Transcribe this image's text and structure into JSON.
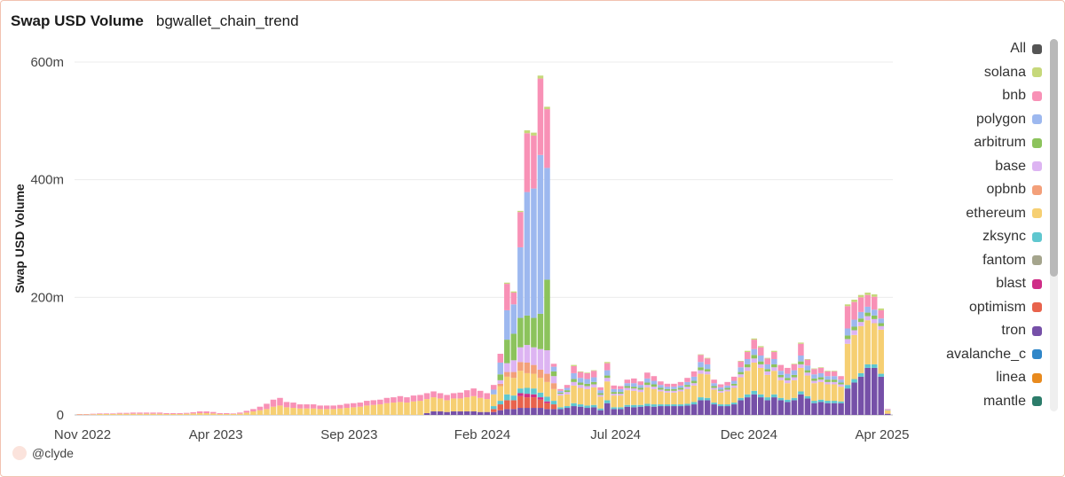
{
  "header": {
    "title": "Swap USD Volume",
    "subtitle": "bgwallet_chain_trend"
  },
  "footer": {
    "handle": "@clyde"
  },
  "colors": {
    "solana": "#c6d87a",
    "bnb": "#f891b6",
    "polygon": "#9db8ef",
    "arbitrum": "#8cc35c",
    "base": "#ddb4f2",
    "opbnb": "#f3a07a",
    "ethereum": "#f6cf72",
    "zksync": "#5fc7cf",
    "fantom": "#a5a58d",
    "blast": "#cf2d87",
    "optimism": "#e8634c",
    "tron": "#7650a8",
    "avalanche_c": "#2f86c8",
    "linea": "#e88a1e",
    "mantle": "#2c7c6a",
    "All": "#555555"
  },
  "legend": {
    "items": [
      {
        "label": "All",
        "color": "#555555"
      },
      {
        "label": "solana",
        "color": "#c6d87a"
      },
      {
        "label": "bnb",
        "color": "#f891b6"
      },
      {
        "label": "polygon",
        "color": "#9db8ef"
      },
      {
        "label": "arbitrum",
        "color": "#8cc35c"
      },
      {
        "label": "base",
        "color": "#ddb4f2"
      },
      {
        "label": "opbnb",
        "color": "#f3a07a"
      },
      {
        "label": "ethereum",
        "color": "#f6cf72"
      },
      {
        "label": "zksync",
        "color": "#5fc7cf"
      },
      {
        "label": "fantom",
        "color": "#a5a58d"
      },
      {
        "label": "blast",
        "color": "#cf2d87"
      },
      {
        "label": "optimism",
        "color": "#e8634c"
      },
      {
        "label": "tron",
        "color": "#7650a8"
      },
      {
        "label": "avalanche_c",
        "color": "#2f86c8"
      },
      {
        "label": "linea",
        "color": "#e88a1e"
      },
      {
        "label": "mantle",
        "color": "#2c7c6a"
      }
    ]
  },
  "chart_data": {
    "type": "bar",
    "stacked": true,
    "title": "Swap USD Volume",
    "subtitle": "bgwallet_chain_trend",
    "ylabel": "Swap USD Volume",
    "xlabel": "",
    "ylim": [
      0,
      600
    ],
    "yticks": [
      0,
      200,
      400,
      600
    ],
    "ytick_labels": [
      "0",
      "200m",
      "400m",
      "600m"
    ],
    "xticks": [
      "Nov 2022",
      "Apr 2023",
      "Sep 2023",
      "Feb 2024",
      "Jul 2024",
      "Dec 2024",
      "Apr 2025"
    ],
    "grid": true,
    "legend_position": "right",
    "unit": "millions USD",
    "series_order": [
      "tron",
      "optimism",
      "blast",
      "zksync",
      "ethereum",
      "opbnb",
      "base",
      "arbitrum",
      "polygon",
      "bnb",
      "solana"
    ],
    "weeks": [
      {
        "tron": 0,
        "ethereum": 1,
        "bnb": 0.5
      },
      {
        "tron": 0,
        "ethereum": 1,
        "bnb": 0.5
      },
      {
        "tron": 0,
        "ethereum": 1,
        "bnb": 1
      },
      {
        "tron": 0,
        "ethereum": 1.5,
        "bnb": 1
      },
      {
        "tron": 0,
        "ethereum": 1.5,
        "bnb": 1
      },
      {
        "tron": 0,
        "ethereum": 1.5,
        "bnb": 1
      },
      {
        "tron": 0,
        "ethereum": 2,
        "bnb": 1.5
      },
      {
        "tron": 0,
        "ethereum": 2,
        "bnb": 1.5
      },
      {
        "tron": 0,
        "ethereum": 2,
        "bnb": 2
      },
      {
        "tron": 0,
        "ethereum": 2,
        "bnb": 2
      },
      {
        "tron": 0,
        "ethereum": 2,
        "bnb": 2
      },
      {
        "tron": 0,
        "ethereum": 2,
        "bnb": 2
      },
      {
        "tron": 0,
        "ethereum": 2,
        "bnb": 2
      },
      {
        "tron": 0,
        "ethereum": 1.5,
        "bnb": 1.5
      },
      {
        "tron": 0,
        "ethereum": 1.5,
        "bnb": 1.5
      },
      {
        "tron": 0,
        "ethereum": 1.5,
        "bnb": 1.5
      },
      {
        "tron": 0,
        "ethereum": 2,
        "bnb": 1.5
      },
      {
        "tron": 0,
        "ethereum": 2.5,
        "bnb": 2
      },
      {
        "tron": 0,
        "ethereum": 3,
        "bnb": 3
      },
      {
        "tron": 0,
        "ethereum": 3,
        "bnb": 3
      },
      {
        "tron": 0,
        "ethereum": 2.5,
        "bnb": 2.5
      },
      {
        "tron": 0,
        "ethereum": 1.5,
        "bnb": 1.5
      },
      {
        "tron": 0,
        "ethereum": 1.5,
        "bnb": 1.5
      },
      {
        "tron": 0,
        "ethereum": 1.5,
        "bnb": 1
      },
      {
        "tron": 0,
        "ethereum": 2,
        "bnb": 2
      },
      {
        "tron": 0,
        "ethereum": 4,
        "bnb": 3
      },
      {
        "tron": 0,
        "ethereum": 6,
        "bnb": 4
      },
      {
        "tron": 0,
        "ethereum": 8,
        "bnb": 6
      },
      {
        "tron": 0,
        "ethereum": 10,
        "bnb": 9
      },
      {
        "tron": 0,
        "ethereum": 14,
        "bnb": 12
      },
      {
        "tron": 0,
        "ethereum": 16,
        "bnb": 13
      },
      {
        "tron": 0,
        "ethereum": 13,
        "bnb": 9
      },
      {
        "tron": 0,
        "ethereum": 12,
        "bnb": 9
      },
      {
        "tron": 0,
        "ethereum": 11,
        "bnb": 7
      },
      {
        "tron": 0,
        "ethereum": 11,
        "bnb": 7
      },
      {
        "tron": 0,
        "ethereum": 11,
        "bnb": 7
      },
      {
        "tron": 0,
        "ethereum": 10,
        "bnb": 6
      },
      {
        "tron": 0,
        "ethereum": 10,
        "bnb": 6
      },
      {
        "tron": 0,
        "ethereum": 10,
        "bnb": 6
      },
      {
        "tron": 0,
        "ethereum": 11,
        "bnb": 6
      },
      {
        "tron": 0,
        "ethereum": 12,
        "bnb": 7
      },
      {
        "tron": 0,
        "ethereum": 13,
        "bnb": 7
      },
      {
        "tron": 0,
        "ethereum": 14,
        "bnb": 7
      },
      {
        "tron": 0,
        "ethereum": 16,
        "bnb": 8
      },
      {
        "tron": 0,
        "ethereum": 17,
        "bnb": 8
      },
      {
        "tron": 0,
        "ethereum": 18,
        "bnb": 8
      },
      {
        "tron": 0,
        "ethereum": 20,
        "bnb": 9
      },
      {
        "tron": 0,
        "ethereum": 21,
        "bnb": 9
      },
      {
        "tron": 0,
        "ethereum": 22,
        "bnb": 10
      },
      {
        "tron": 0,
        "ethereum": 21,
        "bnb": 9
      },
      {
        "tron": 0,
        "ethereum": 23,
        "bnb": 10
      },
      {
        "tron": 0,
        "ethereum": 24,
        "bnb": 10
      },
      {
        "tron": 3,
        "ethereum": 24,
        "bnb": 10
      },
      {
        "tron": 6,
        "ethereum": 24,
        "bnb": 10
      },
      {
        "tron": 6,
        "ethereum": 22,
        "bnb": 9
      },
      {
        "tron": 5,
        "ethereum": 20,
        "bnb": 9
      },
      {
        "tron": 6,
        "ethereum": 22,
        "bnb": 9
      },
      {
        "tron": 6,
        "ethereum": 22,
        "bnb": 10
      },
      {
        "tron": 6,
        "ethereum": 24,
        "bnb": 12
      },
      {
        "tron": 6,
        "ethereum": 26,
        "bnb": 13
      },
      {
        "tron": 5,
        "ethereum": 24,
        "bnb": 12
      },
      {
        "tron": 5,
        "ethereum": 22,
        "bnb": 10
      },
      {
        "tron": 5,
        "optimism": 5,
        "ethereum": 20,
        "zksync": 5,
        "polygon": 8,
        "bnb": 8
      },
      {
        "tron": 8,
        "optimism": 10,
        "ethereum": 25,
        "zksync": 6,
        "opbnb": 4,
        "base": 6,
        "arbitrum": 10,
        "polygon": 20,
        "bnb": 15
      },
      {
        "tron": 10,
        "optimism": 15,
        "ethereum": 30,
        "zksync": 10,
        "opbnb": 8,
        "base": 15,
        "arbitrum": 40,
        "polygon": 50,
        "bnb": 45,
        "solana": 2
      },
      {
        "tron": 10,
        "optimism": 15,
        "ethereum": 30,
        "zksync": 8,
        "opbnb": 10,
        "base": 20,
        "arbitrum": 45,
        "polygon": 50,
        "bnb": 20,
        "solana": 2
      },
      {
        "tron": 12,
        "optimism": 20,
        "blast": 5,
        "ethereum": 30,
        "zksync": 8,
        "opbnb": 15,
        "base": 25,
        "arbitrum": 50,
        "polygon": 120,
        "bnb": 60,
        "solana": 2
      },
      {
        "tron": 12,
        "optimism": 18,
        "blast": 6,
        "ethereum": 25,
        "zksync": 10,
        "opbnb": 18,
        "base": 30,
        "arbitrum": 50,
        "polygon": 210,
        "bnb": 100,
        "solana": 5
      },
      {
        "tron": 12,
        "optimism": 18,
        "blast": 5,
        "ethereum": 25,
        "zksync": 10,
        "opbnb": 15,
        "base": 30,
        "arbitrum": 50,
        "polygon": 220,
        "bnb": 90,
        "solana": 5
      },
      {
        "tron": 12,
        "optimism": 14,
        "blast": 4,
        "ethereum": 25,
        "zksync": 8,
        "opbnb": 14,
        "base": 35,
        "arbitrum": 60,
        "polygon": 270,
        "bnb": 130,
        "solana": 5
      },
      {
        "tron": 10,
        "optimism": 10,
        "blast": 3,
        "ethereum": 25,
        "zksync": 8,
        "opbnb": 14,
        "base": 40,
        "arbitrum": 120,
        "polygon": 190,
        "bnb": 100,
        "solana": 4
      },
      {
        "tron": 10,
        "optimism": 8,
        "ethereum": 20,
        "zksync": 6,
        "opbnb": 10,
        "base": 12,
        "arbitrum": 8,
        "polygon": 8,
        "bnb": 5
      },
      {
        "tron": 10,
        "ethereum": 20,
        "zksync": 3,
        "base": 3,
        "arbitrum": 2,
        "polygon": 3,
        "bnb": 3
      },
      {
        "tron": 12,
        "ethereum": 20,
        "zksync": 3,
        "base": 4,
        "arbitrum": 3,
        "polygon": 4,
        "bnb": 5
      },
      {
        "tron": 15,
        "ethereum": 30,
        "zksync": 5,
        "base": 6,
        "arbitrum": 5,
        "polygon": 10,
        "bnb": 12,
        "solana": 2
      },
      {
        "tron": 14,
        "ethereum": 28,
        "zksync": 4,
        "base": 5,
        "arbitrum": 4,
        "polygon": 8,
        "bnb": 10,
        "solana": 1
      },
      {
        "tron": 12,
        "ethereum": 28,
        "zksync": 4,
        "base": 5,
        "arbitrum": 4,
        "polygon": 8,
        "bnb": 10,
        "solana": 1
      },
      {
        "tron": 13,
        "ethereum": 30,
        "zksync": 4,
        "base": 5,
        "arbitrum": 4,
        "polygon": 8,
        "bnb": 11,
        "solana": 1
      },
      {
        "tron": 8,
        "ethereum": 20,
        "zksync": 3,
        "base": 3,
        "arbitrum": 3,
        "polygon": 5,
        "bnb": 5
      },
      {
        "tron": 20,
        "ethereum": 32,
        "zksync": 5,
        "base": 6,
        "arbitrum": 4,
        "polygon": 9,
        "bnb": 12,
        "solana": 2
      },
      {
        "tron": 10,
        "ethereum": 20,
        "zksync": 3,
        "base": 3,
        "arbitrum": 3,
        "polygon": 5,
        "bnb": 6
      },
      {
        "tron": 10,
        "ethereum": 20,
        "zksync": 3,
        "base": 3,
        "arbitrum": 3,
        "polygon": 5,
        "bnb": 5
      },
      {
        "tron": 14,
        "ethereum": 25,
        "zksync": 3,
        "base": 4,
        "arbitrum": 3,
        "polygon": 5,
        "bnb": 6
      },
      {
        "tron": 13,
        "ethereum": 24,
        "zksync": 4,
        "base": 4,
        "arbitrum": 3,
        "polygon": 6,
        "bnb": 8
      },
      {
        "tron": 14,
        "ethereum": 22,
        "zksync": 3,
        "base": 4,
        "arbitrum": 3,
        "polygon": 5,
        "bnb": 6
      },
      {
        "tron": 15,
        "ethereum": 28,
        "zksync": 4,
        "base": 4,
        "arbitrum": 4,
        "polygon": 7,
        "bnb": 10
      },
      {
        "tron": 14,
        "ethereum": 26,
        "zksync": 4,
        "base": 4,
        "arbitrum": 4,
        "polygon": 6,
        "bnb": 8
      },
      {
        "tron": 15,
        "ethereum": 22,
        "zksync": 3,
        "base": 3,
        "arbitrum": 3,
        "polygon": 5,
        "bnb": 6
      },
      {
        "tron": 15,
        "ethereum": 20,
        "zksync": 3,
        "base": 3,
        "arbitrum": 3,
        "polygon": 4,
        "bnb": 5
      },
      {
        "tron": 15,
        "ethereum": 20,
        "zksync": 3,
        "base": 3,
        "arbitrum": 3,
        "polygon": 4,
        "bnb": 5
      },
      {
        "tron": 15,
        "ethereum": 22,
        "zksync": 3,
        "base": 3,
        "arbitrum": 3,
        "polygon": 4,
        "bnb": 6
      },
      {
        "tron": 16,
        "ethereum": 25,
        "zksync": 3,
        "base": 4,
        "arbitrum": 3,
        "polygon": 5,
        "bnb": 7
      },
      {
        "tron": 18,
        "ethereum": 28,
        "zksync": 4,
        "base": 4,
        "arbitrum": 4,
        "polygon": 7,
        "bnb": 9
      },
      {
        "tron": 25,
        "ethereum": 40,
        "zksync": 5,
        "base": 6,
        "arbitrum": 5,
        "polygon": 9,
        "bnb": 12,
        "solana": 1
      },
      {
        "tron": 25,
        "ethereum": 40,
        "zksync": 4,
        "base": 5,
        "arbitrum": 4,
        "polygon": 8,
        "bnb": 10,
        "solana": 1
      },
      {
        "tron": 18,
        "ethereum": 22,
        "zksync": 3,
        "base": 3,
        "arbitrum": 3,
        "polygon": 5,
        "bnb": 6
      },
      {
        "tron": 15,
        "ethereum": 20,
        "zksync": 3,
        "base": 3,
        "arbitrum": 2,
        "polygon": 4,
        "bnb": 5
      },
      {
        "tron": 15,
        "ethereum": 22,
        "zksync": 3,
        "base": 3,
        "arbitrum": 3,
        "polygon": 4,
        "bnb": 6
      },
      {
        "tron": 18,
        "ethereum": 25,
        "zksync": 3,
        "base": 4,
        "arbitrum": 3,
        "polygon": 5,
        "bnb": 7
      },
      {
        "tron": 25,
        "ethereum": 35,
        "zksync": 4,
        "base": 5,
        "arbitrum": 4,
        "polygon": 8,
        "bnb": 10,
        "solana": 1
      },
      {
        "tron": 30,
        "ethereum": 40,
        "zksync": 5,
        "base": 6,
        "arbitrum": 5,
        "polygon": 9,
        "bnb": 12,
        "solana": 2
      },
      {
        "tron": 35,
        "ethereum": 48,
        "zksync": 6,
        "base": 7,
        "arbitrum": 6,
        "polygon": 10,
        "bnb": 16,
        "solana": 2
      },
      {
        "tron": 30,
        "ethereum": 45,
        "zksync": 5,
        "base": 6,
        "arbitrum": 5,
        "polygon": 10,
        "bnb": 14,
        "solana": 2
      },
      {
        "tron": 25,
        "ethereum": 38,
        "zksync": 5,
        "base": 6,
        "arbitrum": 4,
        "polygon": 8,
        "bnb": 10,
        "solana": 1
      },
      {
        "tron": 30,
        "ethereum": 40,
        "zksync": 5,
        "base": 6,
        "arbitrum": 5,
        "polygon": 9,
        "bnb": 12,
        "solana": 2
      },
      {
        "tron": 25,
        "ethereum": 30,
        "zksync": 4,
        "base": 5,
        "arbitrum": 4,
        "polygon": 7,
        "bnb": 10
      },
      {
        "tron": 22,
        "ethereum": 28,
        "zksync": 4,
        "base": 5,
        "arbitrum": 4,
        "polygon": 7,
        "bnb": 10
      },
      {
        "tron": 25,
        "ethereum": 30,
        "zksync": 4,
        "base": 5,
        "arbitrum": 4,
        "polygon": 8,
        "bnb": 10,
        "solana": 1
      },
      {
        "tron": 35,
        "ethereum": 40,
        "zksync": 5,
        "base": 6,
        "arbitrum": 5,
        "polygon": 10,
        "bnb": 20,
        "solana": 2
      },
      {
        "tron": 28,
        "ethereum": 35,
        "zksync": 4,
        "base": 5,
        "arbitrum": 4,
        "polygon": 8,
        "bnb": 10,
        "solana": 1
      },
      {
        "tron": 20,
        "ethereum": 30,
        "zksync": 4,
        "base": 4,
        "arbitrum": 4,
        "polygon": 7,
        "bnb": 9,
        "solana": 1
      },
      {
        "tron": 22,
        "ethereum": 30,
        "zksync": 4,
        "base": 4,
        "arbitrum": 4,
        "polygon": 7,
        "bnb": 9,
        "solana": 1
      },
      {
        "tron": 20,
        "ethereum": 28,
        "zksync": 4,
        "base": 4,
        "arbitrum": 4,
        "polygon": 6,
        "bnb": 8,
        "solana": 1
      },
      {
        "tron": 20,
        "ethereum": 28,
        "zksync": 4,
        "base": 4,
        "arbitrum": 4,
        "polygon": 6,
        "bnb": 8,
        "solana": 1
      },
      {
        "tron": 20,
        "ethereum": 25,
        "zksync": 3,
        "base": 4,
        "arbitrum": 3,
        "polygon": 5,
        "bnb": 6
      },
      {
        "tron": 45,
        "ethereum": 70,
        "zksync": 6,
        "base": 8,
        "arbitrum": 6,
        "polygon": 12,
        "bnb": 38,
        "solana": 3
      },
      {
        "tron": 55,
        "ethereum": 75,
        "zksync": 6,
        "base": 8,
        "arbitrum": 6,
        "polygon": 12,
        "bnb": 30,
        "solana": 4
      },
      {
        "tron": 65,
        "ethereum": 80,
        "zksync": 6,
        "base": 7,
        "arbitrum": 6,
        "polygon": 11,
        "bnb": 25,
        "solana": 4
      },
      {
        "tron": 80,
        "ethereum": 75,
        "zksync": 6,
        "base": 7,
        "arbitrum": 6,
        "polygon": 10,
        "bnb": 20,
        "solana": 4
      },
      {
        "tron": 80,
        "ethereum": 70,
        "zksync": 6,
        "base": 7,
        "arbitrum": 6,
        "polygon": 10,
        "bnb": 22,
        "solana": 4
      },
      {
        "tron": 65,
        "ethereum": 75,
        "zksync": 5,
        "base": 6,
        "arbitrum": 5,
        "polygon": 8,
        "bnb": 14,
        "solana": 3
      },
      {
        "tron": 2,
        "ethereum": 6,
        "polygon": 1,
        "bnb": 1
      }
    ]
  }
}
